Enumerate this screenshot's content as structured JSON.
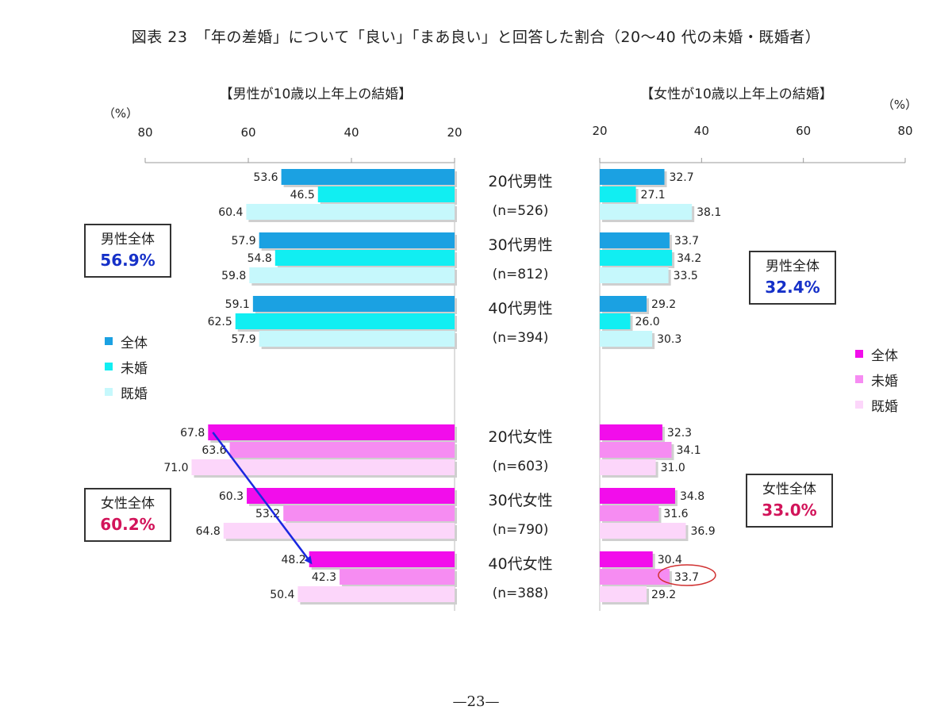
{
  "title": "図表 23　「年の差婚」について「良い」「まあ良い」と回答した割合（20～40 代の未婚・既婚者）",
  "page_number": "—23—",
  "colors": {
    "male_all": "#1BA1E2",
    "male_unmarried": "#11EEF2",
    "male_married": "#C6F8FC",
    "female_all": "#F20DEB",
    "female_unmarried": "#F68CF2",
    "female_married": "#FCD6FA",
    "summary_male": "#1530C8",
    "summary_female": "#D2145A",
    "arrow": "#1A28E0",
    "circle": "#D03030"
  },
  "chart_data": {
    "type": "bar",
    "categories": [
      {
        "label": "20代男性",
        "n": "(n=526)"
      },
      {
        "label": "30代男性",
        "n": "(n=812)"
      },
      {
        "label": "40代男性",
        "n": "(n=394)"
      },
      {
        "label": "20代女性",
        "n": "(n=603)"
      },
      {
        "label": "30代女性",
        "n": "(n=790)"
      },
      {
        "label": "40代女性",
        "n": "(n=388)"
      }
    ],
    "left_panel": {
      "title": "【男性が10歳以上年上の結婚】",
      "unit": "（%）",
      "ticks": [
        "80",
        "60",
        "40",
        "20"
      ],
      "xlim": [
        80,
        20
      ],
      "series": [
        {
          "name": "全体",
          "values": [
            53.6,
            57.9,
            59.1,
            67.8,
            60.3,
            48.2
          ],
          "labels": [
            "53.6",
            "57.9",
            "59.1",
            "67.8",
            "60.3",
            "48.2"
          ]
        },
        {
          "name": "未婚",
          "values": [
            46.5,
            54.8,
            62.5,
            63.6,
            53.2,
            42.3
          ],
          "labels": [
            "46.5",
            "54.8",
            "62.5",
            "63.6",
            "53.2",
            "42.3"
          ]
        },
        {
          "name": "既婚",
          "values": [
            60.4,
            59.8,
            57.9,
            71.0,
            64.8,
            50.4
          ],
          "labels": [
            "60.4",
            "59.8",
            "57.9",
            "71.0",
            "64.8",
            "50.4"
          ]
        }
      ]
    },
    "right_panel": {
      "title": "【女性が10歳以上年上の結婚】",
      "unit": "（%）",
      "ticks": [
        "20",
        "40",
        "60",
        "80"
      ],
      "xlim": [
        20,
        80
      ],
      "series": [
        {
          "name": "全体",
          "values": [
            32.7,
            33.7,
            29.2,
            32.3,
            34.8,
            30.4
          ],
          "labels": [
            "32.7",
            "33.7",
            "29.2",
            "32.3",
            "34.8",
            "30.4"
          ]
        },
        {
          "name": "未婚",
          "values": [
            27.1,
            34.2,
            26.0,
            34.1,
            31.6,
            33.7
          ],
          "labels": [
            "27.1",
            "34.2",
            "26.0",
            "34.1",
            "31.6",
            "33.7"
          ]
        },
        {
          "name": "既婚",
          "values": [
            38.1,
            33.5,
            30.3,
            31.0,
            36.9,
            29.2
          ],
          "labels": [
            "38.1",
            "33.5",
            "30.3",
            "31.0",
            "36.9",
            "29.2"
          ]
        }
      ]
    },
    "legend": [
      "全体",
      "未婚",
      "既婚"
    ],
    "summaries": {
      "left_male": {
        "label": "男性全体",
        "value": "56.9%"
      },
      "left_female": {
        "label": "女性全体",
        "value": "60.2%"
      },
      "right_male": {
        "label": "男性全体",
        "value": "32.4%"
      },
      "right_female": {
        "label": "女性全体",
        "value": "33.0%"
      }
    },
    "annotations": {
      "arrow": {
        "from": {
          "panel": "left",
          "category": "20代女性",
          "series": "全体",
          "value": 67.8
        },
        "to": {
          "panel": "left",
          "category": "40代女性",
          "series": "全体",
          "value": 48.2
        }
      },
      "circled_label": {
        "panel": "right",
        "category": "40代女性",
        "series": "未婚",
        "value": 33.7
      }
    }
  }
}
